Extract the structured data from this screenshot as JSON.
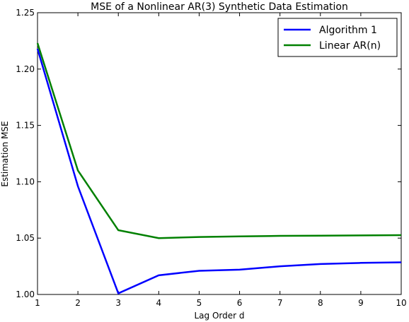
{
  "chart_data": {
    "type": "line",
    "title": "MSE of a Nonlinear AR(3) Synthetic Data Estimation",
    "xlabel": "Lag Order d",
    "ylabel": "Estimation MSE",
    "x": [
      1,
      2,
      3,
      4,
      5,
      6,
      7,
      8,
      9,
      10
    ],
    "xlim": [
      1,
      10
    ],
    "ylim": [
      1.0,
      1.25
    ],
    "xticks": [
      "1",
      "2",
      "3",
      "4",
      "5",
      "6",
      "7",
      "8",
      "9",
      "10"
    ],
    "yticks": [
      "1.00",
      "1.05",
      "1.10",
      "1.15",
      "1.20",
      "1.25"
    ],
    "grid": false,
    "legend_position": "top-right",
    "series": [
      {
        "name": "Algorithm 1",
        "color": "#0000ff",
        "values": [
          1.218,
          1.096,
          1.001,
          1.017,
          1.021,
          1.022,
          1.025,
          1.027,
          1.028,
          1.0285
        ]
      },
      {
        "name": "Linear AR(n)",
        "color": "#008000",
        "values": [
          1.223,
          1.11,
          1.057,
          1.05,
          1.051,
          1.0515,
          1.052,
          1.0522,
          1.0524,
          1.0526
        ]
      }
    ]
  }
}
